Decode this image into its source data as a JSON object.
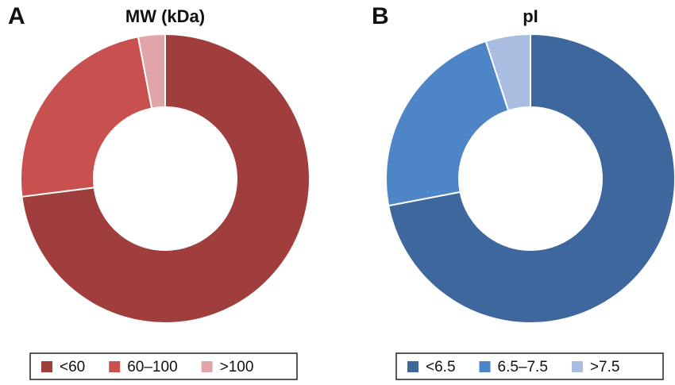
{
  "chart_data": [
    {
      "type": "donut",
      "label": "A",
      "title": "MW (kDa)",
      "categories": [
        "<60",
        "60–100",
        ">100"
      ],
      "values": [
        73,
        24,
        3
      ],
      "colors": [
        "#a03d3d",
        "#c8504e",
        "#e1a4a7"
      ],
      "legend": "bottom"
    },
    {
      "type": "donut",
      "label": "B",
      "title": "pI",
      "categories": [
        "<6.5",
        "6.5–7.5",
        ">7.5"
      ],
      "values": [
        72,
        23,
        5
      ],
      "colors": [
        "#3e679e",
        "#4d85c7",
        "#a8bde0"
      ],
      "legend": "bottom"
    }
  ]
}
